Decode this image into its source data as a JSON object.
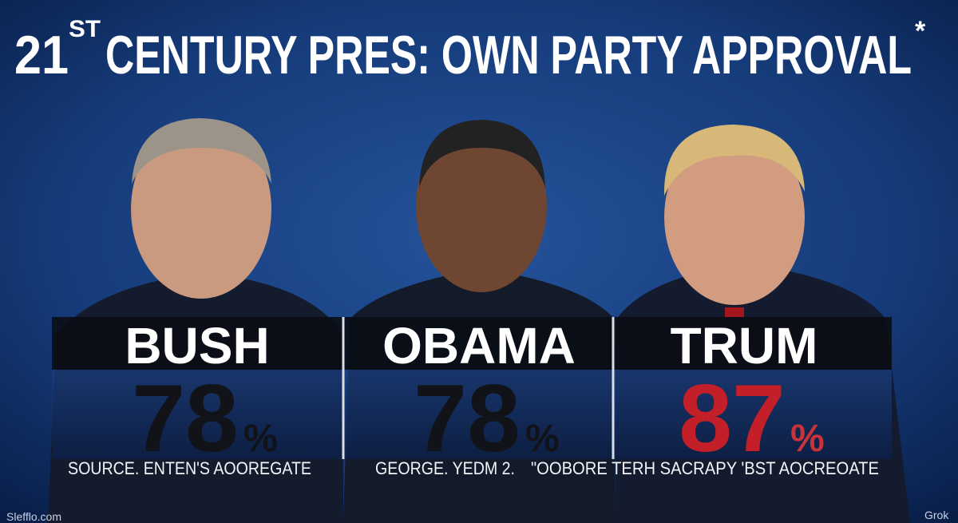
{
  "header": {
    "title_number": "21",
    "title_superscript": "ST",
    "title_rest": "CENTURY PRES: OWN PARTY APPROVAL",
    "title_mark": "*"
  },
  "panels": [
    {
      "name": "BUSH",
      "value": 78,
      "unit": "%",
      "source": "SOURCE. ENTEN'S AOOREGATE"
    },
    {
      "name": "OBAMA",
      "value": 78,
      "unit": "%",
      "source": "GEORGE. YEDM 2."
    },
    {
      "name": "TRUM",
      "value": 87,
      "unit": "%",
      "source": "\"OOBORE TERH SACRAPY 'BST AOCREOATE"
    }
  ],
  "footer": {
    "watermark_left": "Slefflo.com",
    "watermark_right": "Grok"
  }
}
